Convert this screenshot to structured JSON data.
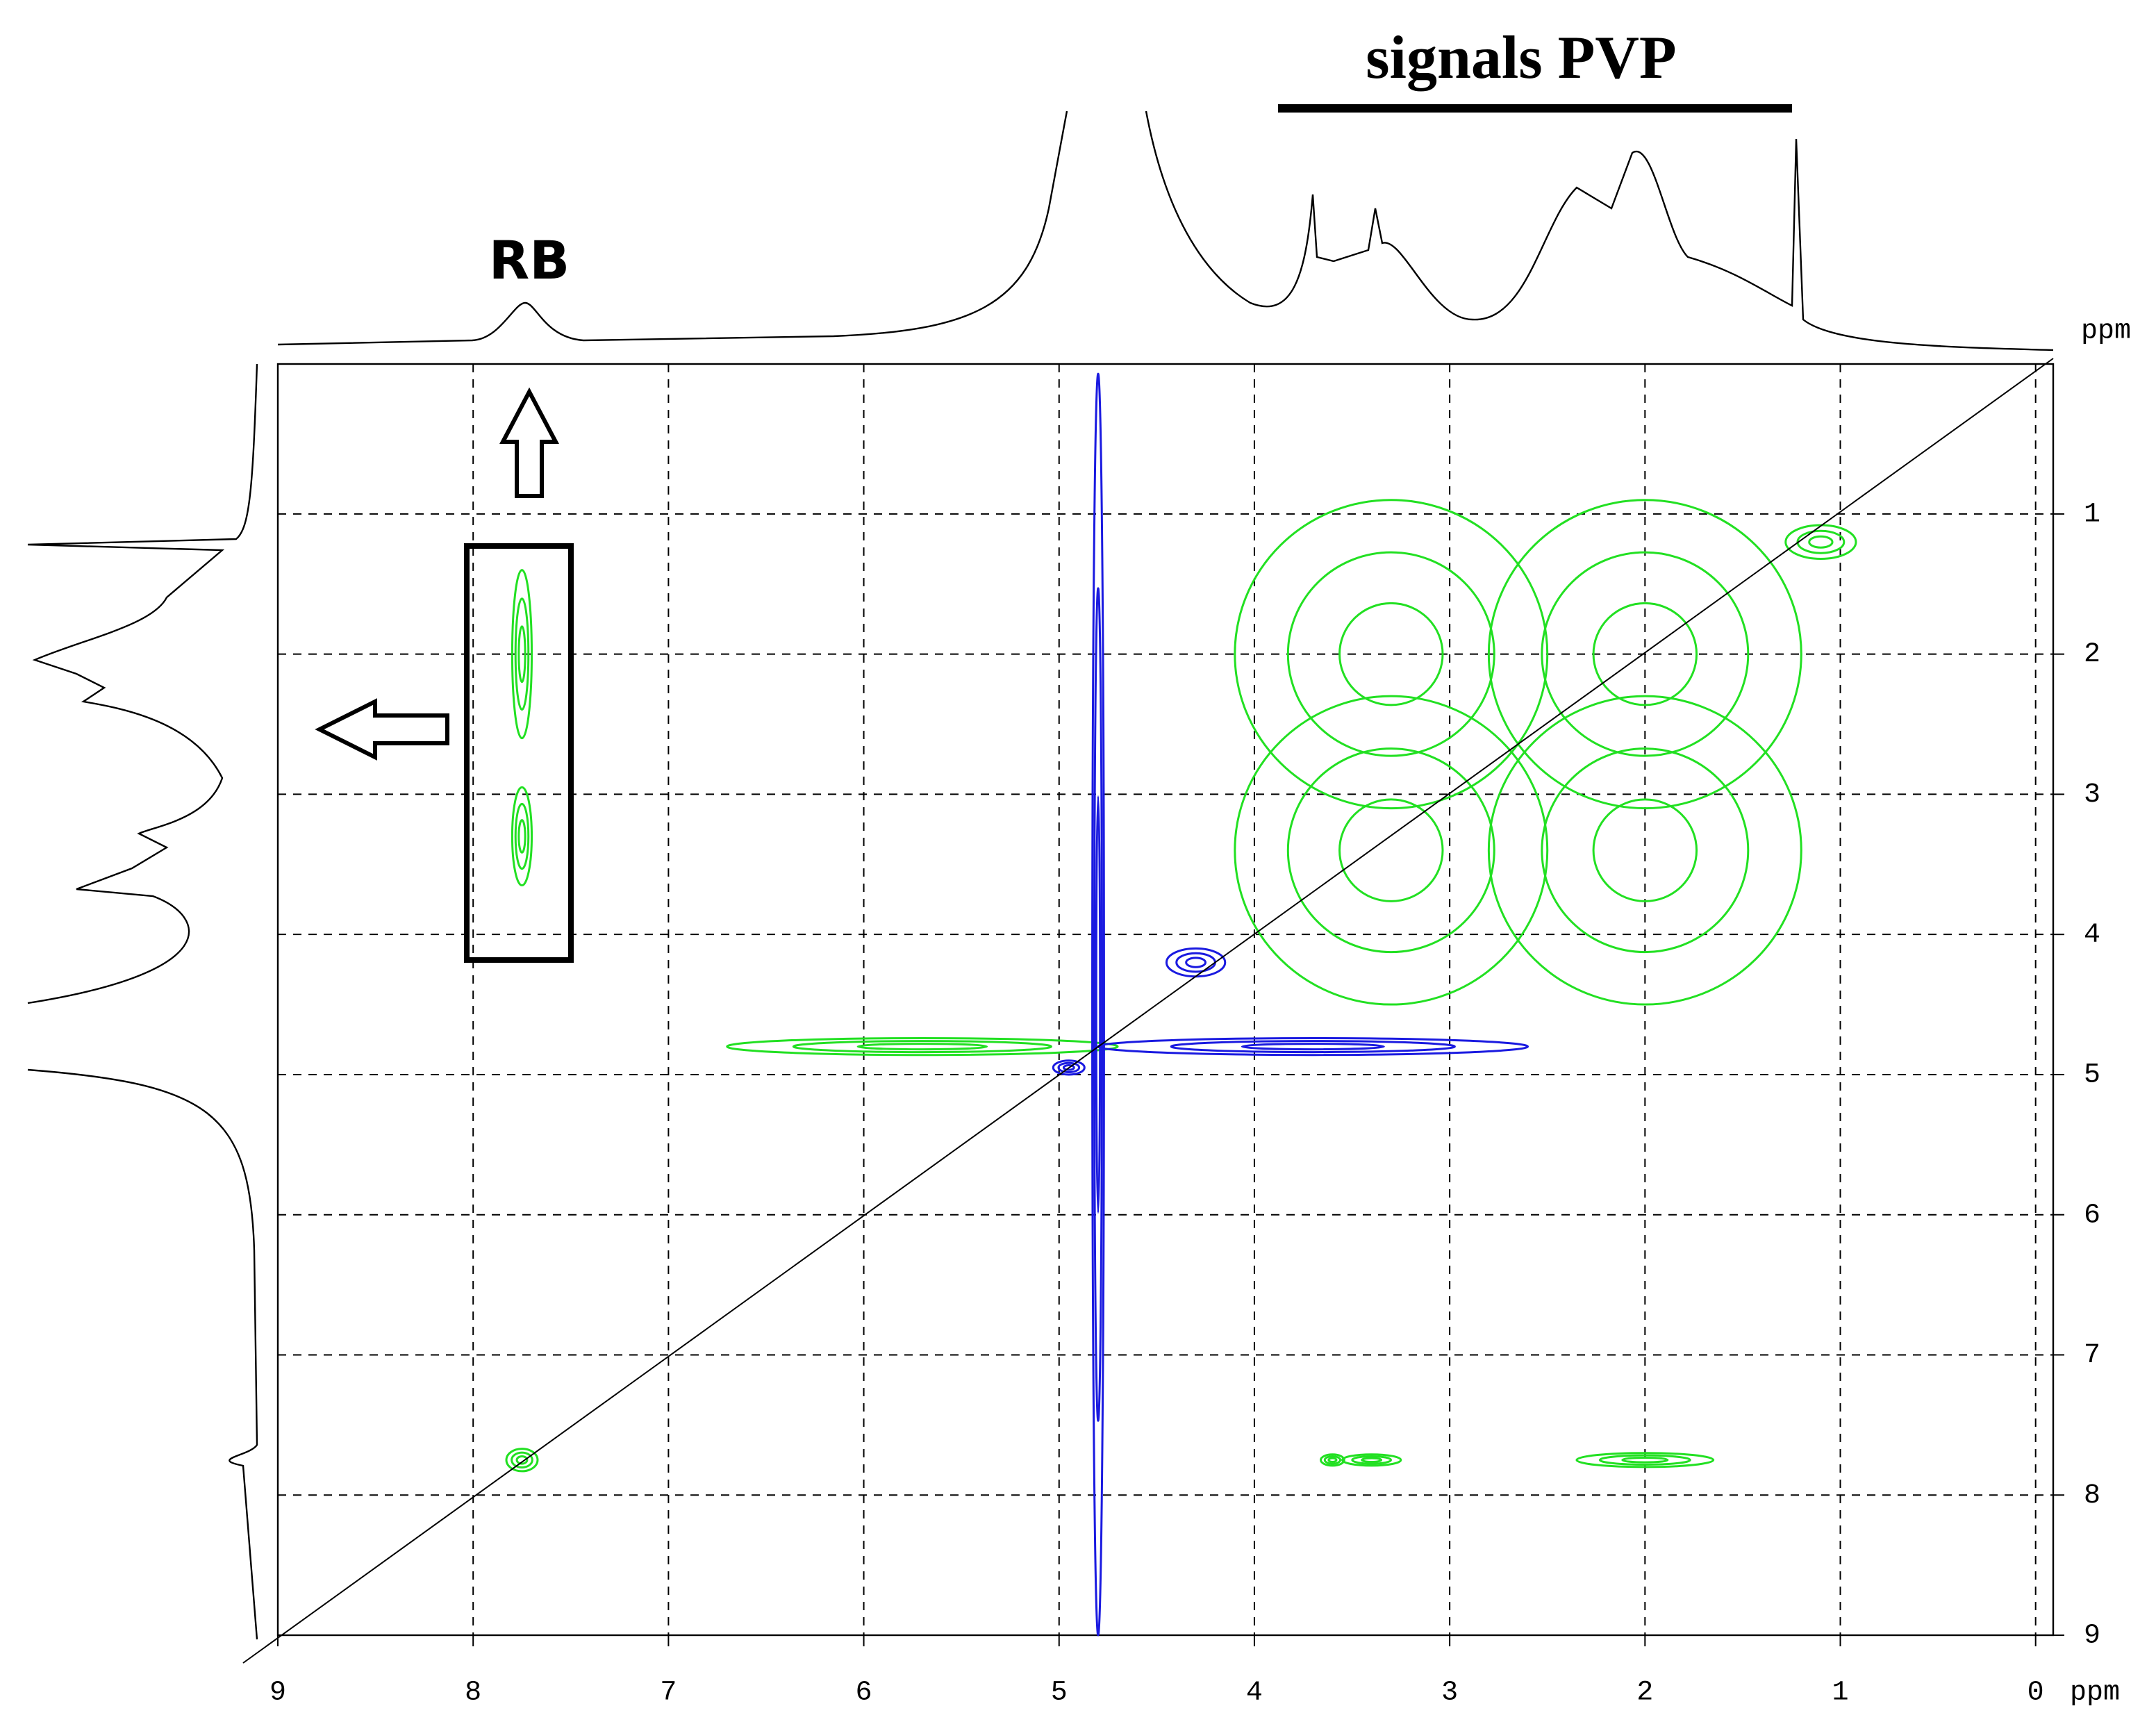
{
  "chart_data": {
    "type": "contour",
    "annotations": [
      "signals PVP",
      "RB"
    ],
    "x_label": "ppm",
    "y_label": "ppm",
    "xlim": [
      9,
      -0.09
    ],
    "ylim": [
      -0.07,
      9
    ],
    "xticks": [
      9,
      8,
      7,
      6,
      5,
      4,
      3,
      2,
      1,
      0
    ],
    "yticks": [
      1,
      2,
      3,
      4,
      5,
      6,
      7,
      8,
      9
    ],
    "grid": true,
    "series": [
      {
        "color": "#22e022",
        "x": [
          3.3,
          2.0,
          3.3,
          2.0,
          1.1,
          7.75,
          7.75,
          7.75,
          2.0,
          3.4,
          3.6,
          5.7
        ],
        "y": [
          2.0,
          2.0,
          3.4,
          3.4,
          1.2,
          7.75,
          2.0,
          3.3,
          7.75,
          7.75,
          7.75,
          4.8
        ],
        "x_width": [
          0.8,
          0.8,
          0.8,
          0.8,
          0.18,
          0.08,
          0.05,
          0.05,
          0.35,
          0.15,
          0.06,
          1.0
        ],
        "y_width": [
          1.1,
          1.1,
          1.1,
          1.1,
          0.12,
          0.08,
          0.6,
          0.35,
          0.05,
          0.04,
          0.04,
          0.06
        ]
      },
      {
        "color": "#1a1ae0",
        "x": [
          4.8,
          3.7,
          4.3,
          4.95
        ],
        "y": [
          4.5,
          4.8,
          4.2,
          4.95
        ],
        "x_width": [
          0.03,
          1.1,
          0.15,
          0.08
        ],
        "y_width": [
          4.5,
          0.06,
          0.1,
          0.05
        ]
      }
    ]
  }
}
